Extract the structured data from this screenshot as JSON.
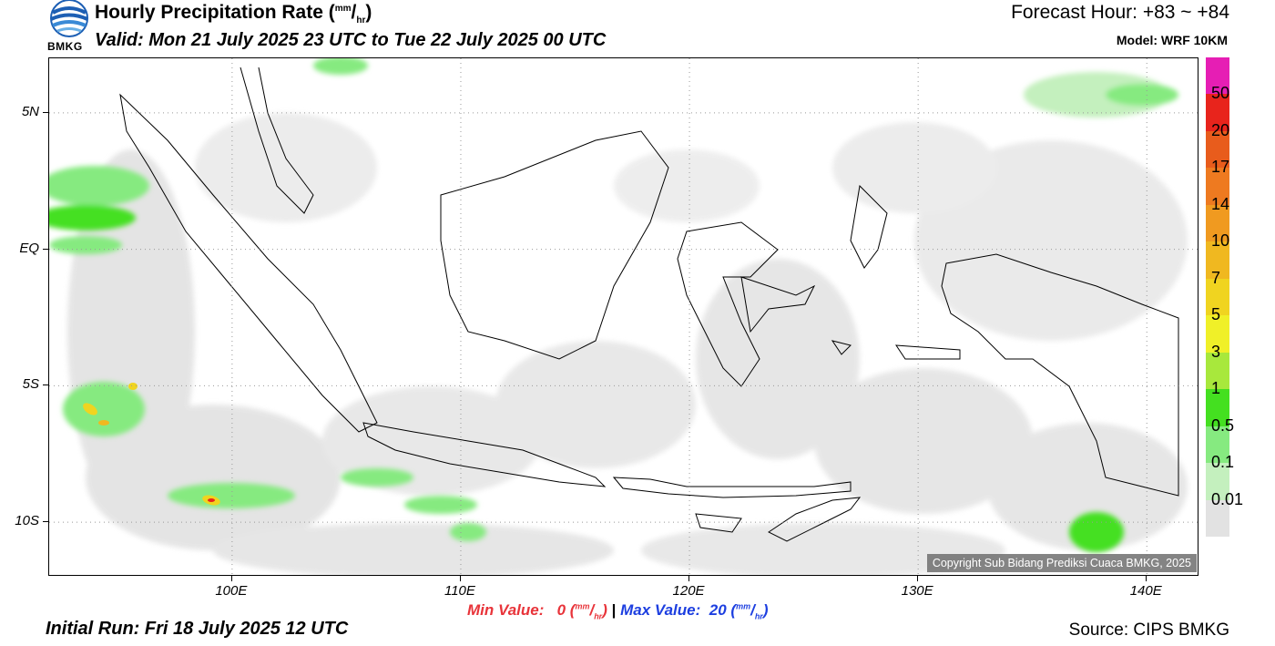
{
  "header": {
    "title_prefix": "Hourly Precipitation Rate (",
    "unit_num": "mm",
    "unit_den": "hr",
    "title_suffix": ")",
    "valid": "Valid: Mon 21 July 2025 23 UTC to Tue 22 July 2025 00 UTC",
    "forecast": "Forecast Hour: +83 ~ +84",
    "model": "Model: WRF 10KM"
  },
  "logo": {
    "text": "BMKG",
    "icon": "bmkg-logo-icon"
  },
  "map": {
    "lat_labels": [
      {
        "label": "5N",
        "value": 5
      },
      {
        "label": "EQ",
        "value": 0
      },
      {
        "label": "5S",
        "value": -5
      },
      {
        "label": "10S",
        "value": -10
      }
    ],
    "lon_labels": [
      {
        "label": "100E",
        "value": 100
      },
      {
        "label": "110E",
        "value": 110
      },
      {
        "label": "120E",
        "value": 120
      },
      {
        "label": "130E",
        "value": 130
      },
      {
        "label": "140E",
        "value": 140
      }
    ],
    "lon_range": [
      92,
      142.3
    ],
    "lat_range": [
      -12,
      7
    ],
    "copyright": "Copyright Sub Bidang Prediksi Cuaca BMKG, 2025"
  },
  "legend": {
    "labels": [
      "50",
      "20",
      "17",
      "14",
      "10",
      "7",
      "5",
      "3",
      "1",
      "0.5",
      "0.1",
      "0.01"
    ],
    "colors": [
      "#e61eb4",
      "#e8241c",
      "#e85c1c",
      "#ee7a20",
      "#f09a20",
      "#f0b820",
      "#f0d420",
      "#f0f028",
      "#a8e83c",
      "#44e020",
      "#86ea80",
      "#c4f0be",
      "#e2e2e2"
    ]
  },
  "footer": {
    "min_label": "Min Value:",
    "min_value": "0",
    "max_label": "Max Value:",
    "max_value": "20",
    "separator": "|",
    "unit_num": "mm",
    "unit_den": "hr",
    "initial_run": "Initial Run: Fri 18 July 2025 12 UTC",
    "source": "Source: CIPS BMKG"
  }
}
